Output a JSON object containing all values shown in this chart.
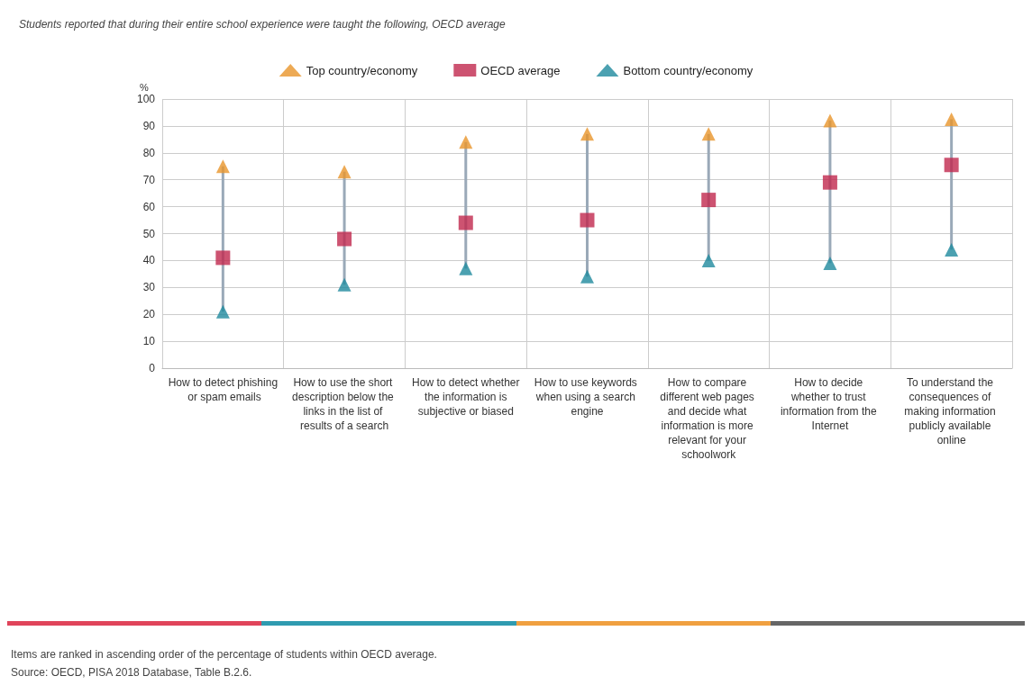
{
  "chart_data": {
    "type": "scatter",
    "title": "Students reported that during their entire school experience were taught the following, OECD average",
    "ylabel": "%",
    "categories": [
      "How to detect phishing or spam emails",
      "How to use the short description below the links in the list of results of a search",
      "How to detect whether the information is subjective or biased",
      "How to use keywords when using a search engine",
      "How to compare different web pages and decide what information is more relevant for your schoolwork",
      "How to decide whether to trust information from the Internet",
      "To understand the consequences of making information publicly available online"
    ],
    "series": [
      {
        "name": "Top country/economy",
        "color": "#e8952b",
        "marker": "triangle",
        "values": [
          75,
          73,
          84,
          87,
          87,
          92,
          92.5
        ]
      },
      {
        "name": "OECD average",
        "color": "#c1284d",
        "marker": "square",
        "values": [
          41,
          48,
          54,
          55,
          62.5,
          69,
          75.5
        ]
      },
      {
        "name": "Bottom country/economy",
        "color": "#1f8a9e",
        "marker": "triangle",
        "values": [
          21,
          31,
          37,
          34,
          40,
          39,
          44
        ]
      }
    ],
    "ylim": [
      0,
      100
    ],
    "yticks": [
      0,
      10,
      20,
      30,
      40,
      50,
      60,
      70,
      80,
      90,
      100
    ],
    "grid": true,
    "legend": "top",
    "annotations": [
      "Items are ranked in ascending order of the percentage of students within OECD average.",
      "Source: OECD, PISA 2018 Database, Table B.2.6."
    ]
  }
}
